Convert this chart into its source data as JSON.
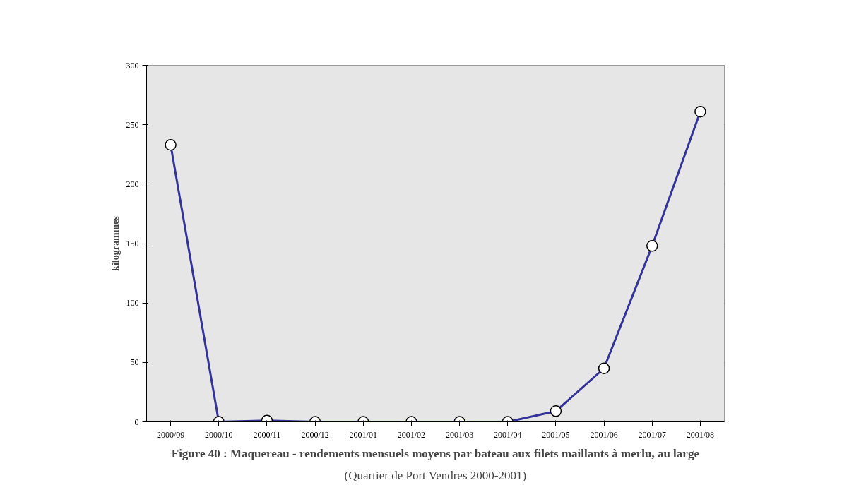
{
  "chart_data": {
    "type": "line",
    "title": "Figure 40 : Maquereau - rendements mensuels moyens par bateau aux filets maillants à merlu, au large",
    "subtitle": "(Quartier de Port Vendres 2000-2001)",
    "ylabel": "kilogrammes",
    "categories": [
      "2000/09",
      "2000/10",
      "2000/11",
      "2000/12",
      "2001/01",
      "2001/02",
      "2001/03",
      "2001/04",
      "2001/05",
      "2001/06",
      "2001/07",
      "2001/08"
    ],
    "series": [
      {
        "color": "#333399",
        "values": [
          233,
          0,
          1,
          0,
          0,
          0,
          0,
          0,
          9,
          45,
          148,
          261
        ]
      }
    ],
    "ylim": [
      0,
      300
    ],
    "yticks": [
      0,
      50,
      100,
      150,
      200,
      250,
      300
    ],
    "grid": "y",
    "marker": "circle",
    "line_style": "solid"
  }
}
